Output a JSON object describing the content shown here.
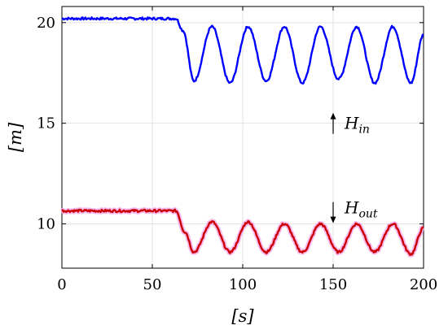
{
  "chart_data": {
    "type": "line",
    "title": "",
    "xlabel": "[s]",
    "ylabel": "[m]",
    "xlim": [
      0,
      200
    ],
    "ylim": [
      7.8,
      20.8
    ],
    "xticks": [
      0,
      50,
      100,
      150,
      200
    ],
    "yticks": [
      10,
      15,
      20
    ],
    "xtick_labels": [
      "0",
      "50",
      "100",
      "150",
      "200"
    ],
    "ytick_labels": [
      "10",
      "15",
      "20"
    ],
    "grid": true,
    "series": [
      {
        "name": "H_in",
        "color": "#0000ff",
        "x": [
          0,
          63,
          67,
          73,
          83,
          93,
          103,
          113,
          123,
          133,
          143,
          153,
          163,
          173,
          183,
          193,
          200
        ],
        "y": [
          20.2,
          20.2,
          19.6,
          17.1,
          19.8,
          17.0,
          19.8,
          17.1,
          19.8,
          17.0,
          19.8,
          17.2,
          19.8,
          17.0,
          19.8,
          17.0,
          19.4
        ]
      },
      {
        "name": "H_out",
        "color": "#cc0000",
        "x": [
          0,
          63,
          68,
          73,
          83,
          93,
          103,
          113,
          123,
          133,
          143,
          153,
          163,
          173,
          183,
          193,
          200
        ],
        "y": [
          10.65,
          10.65,
          9.6,
          8.6,
          10.1,
          8.6,
          10.1,
          8.6,
          10.0,
          8.6,
          10.0,
          8.6,
          10.0,
          8.6,
          10.0,
          8.5,
          9.8
        ]
      }
    ],
    "annotations": [
      {
        "base": "H",
        "sub": "in",
        "x": 150,
        "y": 15.2,
        "arrow": "up"
      },
      {
        "base": "H",
        "sub": "out",
        "x": 150,
        "y": 10.6,
        "arrow": "down"
      }
    ]
  }
}
